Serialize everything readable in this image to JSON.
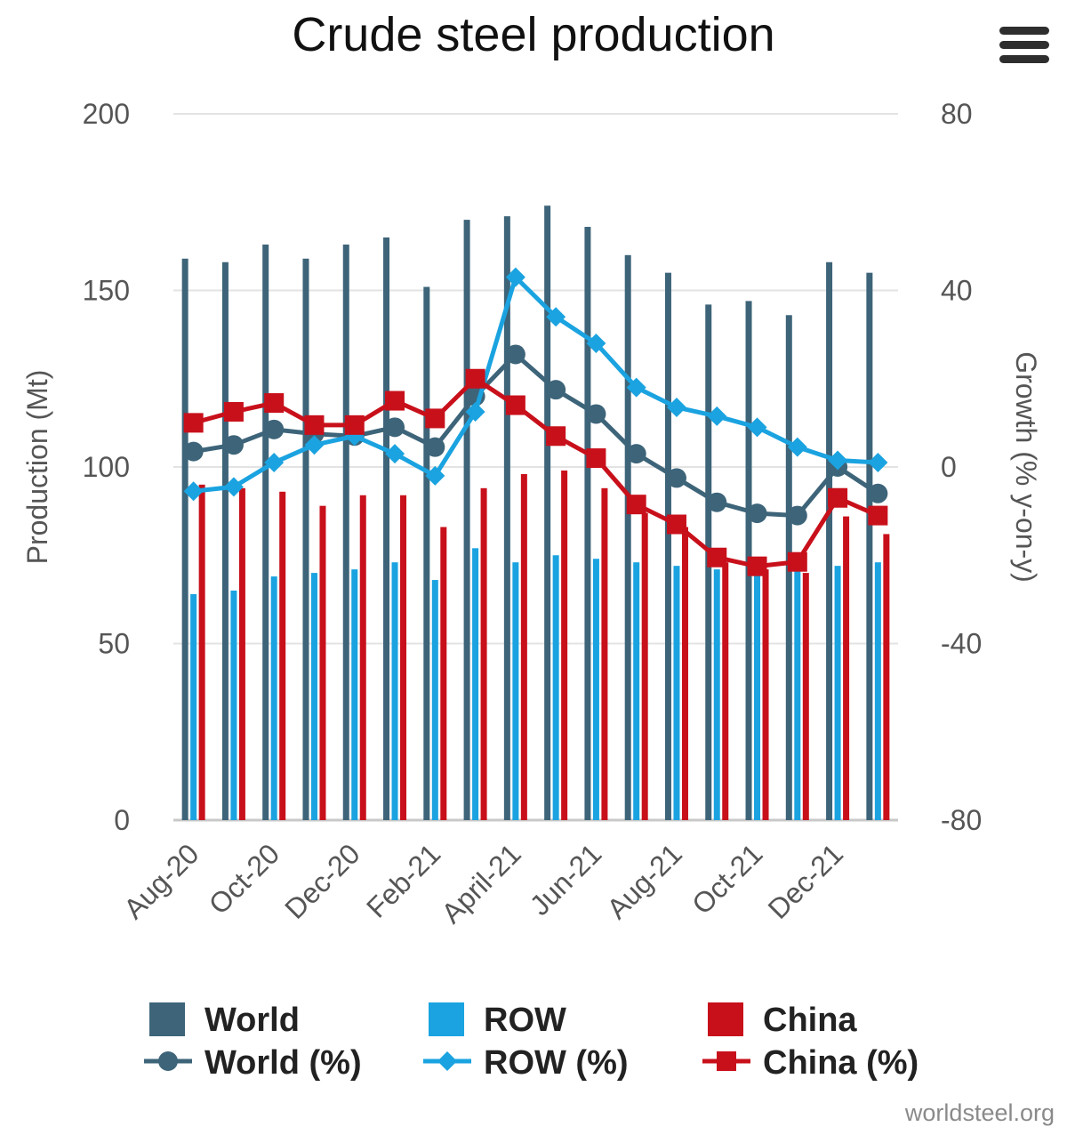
{
  "chart_data": {
    "type": "bar+line",
    "title": "Crude steel production",
    "categories": [
      "Aug-20",
      "Sep-20",
      "Oct-20",
      "Nov-20",
      "Dec-20",
      "Jan-21",
      "Feb-21",
      "Mar-21",
      "April-21",
      "May-21",
      "Jun-21",
      "Jul-21",
      "Aug-21",
      "Sep-21",
      "Oct-21",
      "Nov-21",
      "Dec-21",
      "Jan-22"
    ],
    "x_tick_labels": [
      "Aug-20",
      "Oct-20",
      "Dec-20",
      "Feb-21",
      "April-21",
      "Jun-21",
      "Aug-21",
      "Oct-21",
      "Dec-21"
    ],
    "ylabel_left": "Production (Mt)",
    "ylabel_right": "Growth (% y-on-y)",
    "ylim_left": [
      0,
      200
    ],
    "ylim_right": [
      -80,
      80
    ],
    "yticks_left": [
      0,
      50,
      100,
      150,
      200
    ],
    "yticks_right": [
      -80,
      -40,
      0,
      40,
      80
    ],
    "bar_series": [
      {
        "name": "World",
        "color": "#3d6479",
        "values": [
          159,
          158,
          163,
          159,
          163,
          165,
          151,
          170,
          171,
          174,
          168,
          160,
          155,
          146,
          147,
          143,
          158,
          155
        ]
      },
      {
        "name": "ROW",
        "color": "#1aa3e0",
        "values": [
          64,
          65,
          69,
          70,
          71,
          73,
          68,
          77,
          73,
          75,
          74,
          73,
          72,
          71,
          70,
          71,
          72,
          73
        ]
      },
      {
        "name": "China",
        "color": "#c8101b",
        "values": [
          95,
          94,
          93,
          89,
          92,
          92,
          83,
          94,
          98,
          99,
          94,
          87,
          83,
          73,
          71,
          70,
          86,
          81
        ]
      }
    ],
    "line_series": [
      {
        "name": "World (%)",
        "color": "#3d6479",
        "marker": "circle",
        "values": [
          3.5,
          5,
          8.5,
          7.5,
          7,
          9,
          4.5,
          16,
          25.5,
          17.5,
          12,
          3,
          -2.5,
          -8,
          -10.5,
          -11,
          0,
          -6
        ]
      },
      {
        "name": "ROW (%)",
        "color": "#1aa3e0",
        "marker": "diamond",
        "values": [
          -5.5,
          -4.5,
          1,
          5,
          7,
          3,
          -2,
          12.5,
          43,
          34,
          28,
          18,
          13.5,
          11.5,
          9,
          4.5,
          1.5,
          1
        ]
      },
      {
        "name": "China (%)",
        "color": "#c8101b",
        "marker": "square",
        "values": [
          10,
          12.5,
          14.5,
          9.5,
          9.5,
          15,
          11,
          20,
          14,
          7,
          2,
          -8.5,
          -13,
          -20.5,
          -22.5,
          -21.5,
          -7,
          -11
        ]
      }
    ],
    "legend": [
      "World",
      "ROW",
      "China",
      "World (%)",
      "ROW (%)",
      "China (%)"
    ],
    "legend_position": "bottom",
    "grid": true
  },
  "ui": {
    "menu_icon": "hamburger-menu-icon",
    "credits": "worldsteel.org"
  }
}
